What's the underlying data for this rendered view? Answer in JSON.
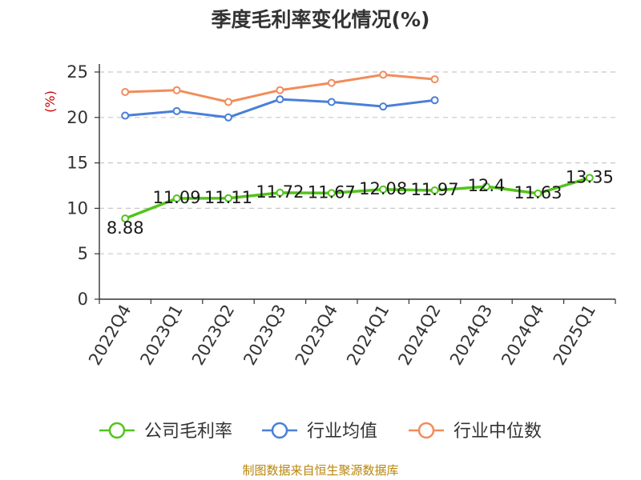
{
  "chart_data": {
    "type": "line",
    "title": "季度毛利率变化情况(%)",
    "ylabel": "(%)",
    "categories": [
      "2022Q4",
      "2023Q1",
      "2023Q2",
      "2023Q3",
      "2023Q4",
      "2024Q1",
      "2024Q2",
      "2024Q3",
      "2024Q4",
      "2025Q1"
    ],
    "yticks": [
      "0",
      "5",
      "10",
      "15",
      "20",
      "25"
    ],
    "ylim": [
      0,
      25
    ],
    "grid": true,
    "legend_position": "bottom",
    "series": [
      {
        "name": "公司毛利率",
        "color": "#52c41a",
        "values": [
          8.88,
          11.09,
          11.11,
          11.72,
          11.67,
          12.08,
          11.97,
          12.4,
          11.63,
          13.35
        ],
        "labels": [
          "8.88",
          "11.09",
          "11.11",
          "11.72",
          "11.67",
          "12.08",
          "11.97",
          "12.4",
          "11.63",
          "13.35"
        ]
      },
      {
        "name": "行业均值",
        "color": "#4a7fd8",
        "values": [
          20.2,
          20.7,
          20.0,
          22.0,
          21.7,
          21.2,
          21.9,
          null,
          null,
          null
        ]
      },
      {
        "name": "行业中位数",
        "color": "#f28c5a",
        "values": [
          22.8,
          23.0,
          21.7,
          23.0,
          23.8,
          24.7,
          24.2,
          null,
          null,
          null
        ]
      }
    ]
  },
  "footer": {
    "source": "制图数据来自恒生聚源数据库"
  }
}
